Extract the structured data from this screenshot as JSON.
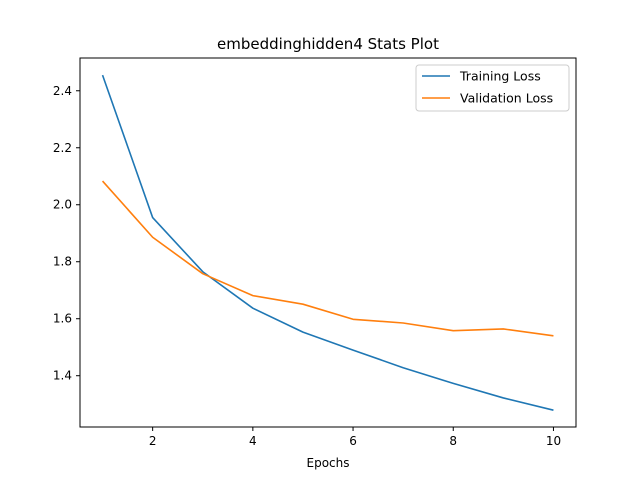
{
  "chart_data": {
    "type": "line",
    "title": "embeddinghidden4 Stats Plot",
    "xlabel": "Epochs",
    "ylabel": "",
    "xlim": [
      0.55,
      10.45
    ],
    "ylim": [
      1.22,
      2.515
    ],
    "xticks": [
      2,
      4,
      6,
      8,
      10
    ],
    "yticks": [
      1.4,
      1.6,
      1.8,
      2.0,
      2.2,
      2.4
    ],
    "grid": false,
    "legend_position": "top-right",
    "x": [
      1,
      2,
      3,
      4,
      5,
      6,
      7,
      8,
      9,
      10
    ],
    "series": [
      {
        "name": "Training Loss",
        "color": "#1f77b4",
        "values": [
          2.455,
          1.955,
          1.765,
          1.637,
          1.553,
          1.49,
          1.428,
          1.373,
          1.322,
          1.279
        ]
      },
      {
        "name": "Validation Loss",
        "color": "#ff7f0e",
        "values": [
          2.083,
          1.886,
          1.758,
          1.681,
          1.651,
          1.598,
          1.585,
          1.558,
          1.564,
          1.54
        ]
      }
    ]
  }
}
